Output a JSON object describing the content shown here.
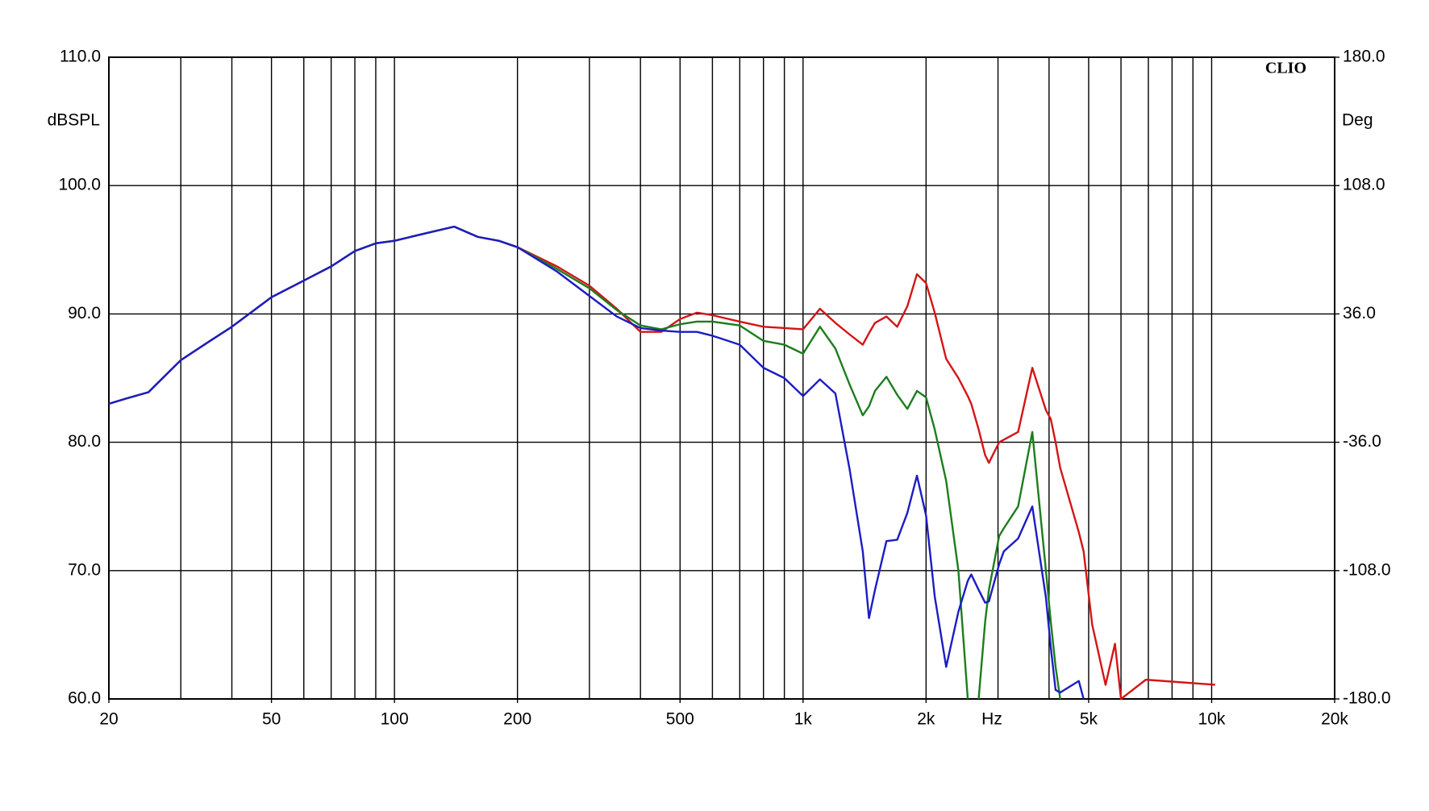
{
  "chart_data": {
    "type": "line",
    "annotation": "CLIO",
    "ylabel": "dBSPL",
    "y2label": "Deg",
    "xlabel": "Hz",
    "log_x": true,
    "grid": true,
    "xlim": [
      20,
      20000
    ],
    "ylim": [
      60,
      110
    ],
    "y2lim": [
      -180,
      180
    ],
    "xticks": [
      20,
      50,
      100,
      200,
      500,
      {
        "value": 1000,
        "label": "1k"
      },
      {
        "value": 2000,
        "label": "2k"
      },
      {
        "value": 5000,
        "label": "5k"
      },
      {
        "value": 10000,
        "label": "10k"
      },
      {
        "value": 20000,
        "label": "20k"
      }
    ],
    "xgrid": [
      20,
      30,
      40,
      50,
      60,
      70,
      80,
      90,
      100,
      200,
      300,
      400,
      500,
      600,
      700,
      800,
      900,
      1000,
      2000,
      3000,
      4000,
      5000,
      6000,
      7000,
      8000,
      9000,
      10000,
      20000
    ],
    "yticks": [
      {
        "value": 60,
        "label": "60.0"
      },
      {
        "value": 70,
        "label": "70.0"
      },
      {
        "value": 80,
        "label": "80.0"
      },
      {
        "value": 90,
        "label": "90.0"
      },
      {
        "value": 100,
        "label": "100.0"
      },
      {
        "value": 110,
        "label": "110.0"
      }
    ],
    "y2ticks": [
      {
        "value": -180,
        "label": "-180.0"
      },
      {
        "value": -108,
        "label": "-108.0"
      },
      {
        "value": -36,
        "label": "-36.0"
      },
      {
        "value": 36,
        "label": "36.0"
      },
      {
        "value": 108,
        "label": "108.0"
      },
      {
        "value": 180,
        "label": "180.0"
      }
    ],
    "x": [
      20,
      22,
      25,
      30,
      35,
      40,
      50,
      60,
      70,
      80,
      90,
      100,
      120,
      140,
      160,
      180,
      200,
      250,
      300,
      350,
      400,
      450,
      500,
      550,
      600,
      700,
      800,
      900,
      1000,
      1100,
      1200,
      1300,
      1400,
      1450,
      1500,
      1600,
      1700,
      1800,
      1900,
      2000,
      2100,
      2240,
      2400,
      2530,
      2580,
      2690,
      2790,
      2850,
      3020,
      3100,
      3360,
      3640,
      3930,
      4040,
      4150,
      4260,
      4730,
      4860,
      5100,
      5500,
      5800,
      6000,
      6900,
      10200
    ],
    "series": [
      {
        "color": "#d41515",
        "values": [
          83.0,
          83.4,
          83.9,
          86.4,
          87.8,
          89.0,
          91.3,
          92.6,
          93.7,
          94.9,
          95.5,
          95.7,
          96.3,
          96.8,
          96.0,
          95.7,
          95.2,
          93.7,
          92.2,
          90.4,
          88.6,
          88.6,
          89.6,
          90.1,
          89.9,
          89.4,
          89.0,
          88.9,
          88.8,
          90.4,
          89.3,
          88.4,
          87.6,
          88.5,
          89.3,
          89.8,
          89.0,
          90.6,
          93.1,
          92.4,
          90.1,
          86.5,
          85.0,
          83.6,
          83.0,
          81.0,
          79.0,
          78.4,
          80.0,
          80.2,
          80.8,
          85.8,
          82.5,
          81.8,
          80.0,
          78.0,
          73.0,
          71.5,
          65.8,
          61.1,
          64.3,
          60.0,
          61.5,
          61.1
        ]
      },
      {
        "color": "#1d7d1d",
        "values": [
          83.0,
          83.4,
          83.9,
          86.4,
          87.8,
          89.0,
          91.3,
          92.6,
          93.7,
          94.9,
          95.5,
          95.7,
          96.3,
          96.8,
          96.0,
          95.7,
          95.2,
          93.5,
          92.0,
          90.3,
          89.1,
          88.8,
          89.2,
          89.4,
          89.4,
          89.1,
          87.9,
          87.6,
          86.9,
          89.0,
          87.3,
          84.5,
          82.1,
          82.8,
          84.0,
          85.1,
          83.7,
          82.6,
          84.0,
          83.5,
          81.0,
          77.0,
          70.0,
          60.0,
          null,
          60.0,
          66.0,
          68.5,
          72.7,
          73.3,
          75.0,
          80.8,
          70.0,
          66.0,
          62.5,
          60.0,
          null,
          null,
          null,
          null,
          null,
          null,
          null,
          null
        ]
      },
      {
        "color": "#1c1cc4",
        "values": [
          83.0,
          83.4,
          83.9,
          86.4,
          87.8,
          89.0,
          91.3,
          92.6,
          93.7,
          94.9,
          95.5,
          95.7,
          96.3,
          96.8,
          96.0,
          95.7,
          95.2,
          93.3,
          91.4,
          89.8,
          88.9,
          88.7,
          88.6,
          88.6,
          88.3,
          87.6,
          85.8,
          85.0,
          83.6,
          84.9,
          83.8,
          77.9,
          71.5,
          66.3,
          68.5,
          72.3,
          72.4,
          74.5,
          77.4,
          74.3,
          68.0,
          62.5,
          66.8,
          69.2,
          69.7,
          68.5,
          67.5,
          67.6,
          70.5,
          71.5,
          72.5,
          75.0,
          67.9,
          64.0,
          60.7,
          60.5,
          61.4,
          60.0,
          null,
          null,
          null,
          null,
          null,
          null
        ]
      }
    ]
  }
}
